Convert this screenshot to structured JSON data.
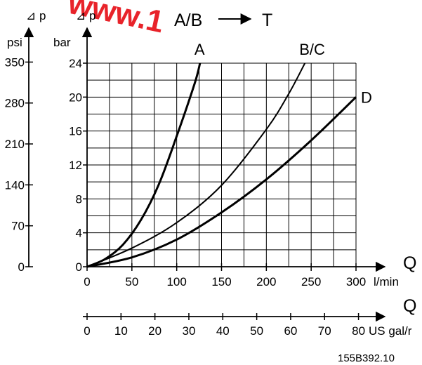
{
  "watermark": {
    "text": "www.1",
    "color": "#e8232a"
  },
  "header": {
    "title": "A/B",
    "target": "T"
  },
  "axes": {
    "psi_symbol": "⊿ p",
    "psi_unit": "psi",
    "bar_symbol": "⊿ p",
    "bar_unit": "bar",
    "q_label_lmin": "Q",
    "lmin_unit": "l/min",
    "q_label_gal": "Q",
    "gal_unit": "US gal/r"
  },
  "figure_code": "155B392.10",
  "chart_data": {
    "type": "line",
    "x_lmin_ticks": [
      0,
      50,
      100,
      150,
      200,
      250,
      300
    ],
    "x_gal_ticks": [
      0,
      10,
      20,
      30,
      40,
      50,
      60,
      70,
      80
    ],
    "y_bar_ticks": [
      0,
      4,
      8,
      12,
      16,
      20,
      24
    ],
    "y_psi_ticks": [
      0,
      70,
      140,
      210,
      280,
      350
    ],
    "xlim": [
      0,
      300
    ],
    "ylim": [
      0,
      24
    ],
    "grid": true,
    "series": [
      {
        "name": "A",
        "x": [
          0,
          20,
          40,
          60,
          80,
          100,
          120,
          126
        ],
        "y": [
          0,
          0.9,
          2.6,
          5.5,
          9.7,
          15.4,
          21.6,
          24
        ]
      },
      {
        "name": "B/C",
        "x": [
          0,
          50,
          100,
          150,
          200,
          225,
          243
        ],
        "y": [
          0,
          2.2,
          5.2,
          9.6,
          16.2,
          20.4,
          24
        ]
      },
      {
        "name": "D",
        "x": [
          0,
          50,
          100,
          150,
          200,
          250,
          300
        ],
        "y": [
          0,
          1.1,
          3.2,
          6.4,
          10.3,
          14.9,
          20
        ]
      }
    ]
  }
}
